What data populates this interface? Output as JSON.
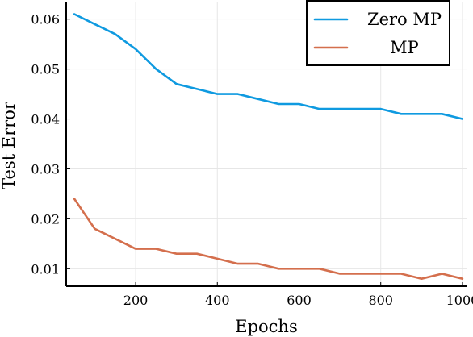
{
  "chart_data": {
    "type": "line",
    "title": "",
    "xlabel": "Epochs",
    "ylabel": "Test Error",
    "xlim": [
      30,
      1010
    ],
    "ylim": [
      0.0065,
      0.0635
    ],
    "xticks": [
      200,
      400,
      600,
      800,
      1000
    ],
    "yticks": [
      0.01,
      0.02,
      0.03,
      0.04,
      0.05,
      0.06
    ],
    "xtick_labels": [
      "200",
      "400",
      "600",
      "800",
      "1000"
    ],
    "ytick_labels": [
      "0.01",
      "0.02",
      "0.03",
      "0.04",
      "0.05",
      "0.06"
    ],
    "grid": true,
    "legend_position": "top-right",
    "x": [
      50,
      100,
      150,
      200,
      250,
      300,
      350,
      400,
      450,
      500,
      550,
      600,
      650,
      700,
      750,
      800,
      850,
      900,
      950,
      1000
    ],
    "series": [
      {
        "name": "Zero MP",
        "color": "#0f9ae0",
        "values": [
          0.061,
          0.059,
          0.057,
          0.054,
          0.05,
          0.047,
          0.046,
          0.045,
          0.045,
          0.044,
          0.043,
          0.043,
          0.042,
          0.042,
          0.042,
          0.042,
          0.041,
          0.041,
          0.041,
          0.04
        ]
      },
      {
        "name": "MP",
        "color": "#d46f4d",
        "values": [
          0.024,
          0.018,
          0.016,
          0.014,
          0.014,
          0.013,
          0.013,
          0.012,
          0.011,
          0.011,
          0.01,
          0.01,
          0.01,
          0.009,
          0.009,
          0.009,
          0.009,
          0.008,
          0.009,
          0.008
        ]
      }
    ]
  }
}
